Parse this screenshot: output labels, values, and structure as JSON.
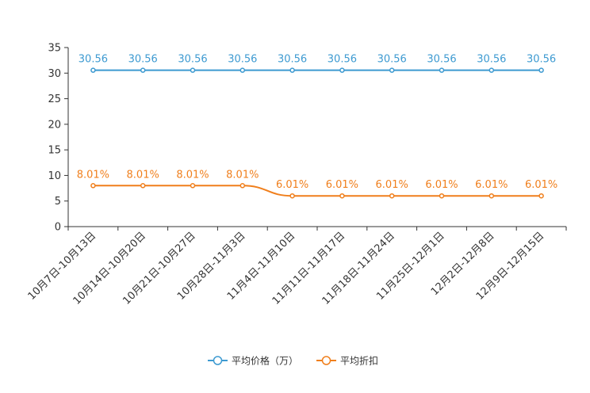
{
  "chart_data": {
    "type": "line",
    "categories": [
      "10月7日-10月13日",
      "10月14日-10月20日",
      "10月21日-10月27日",
      "10月28日-11月3日",
      "11月4日-11月10日",
      "11月11日-11月17日",
      "11月18日-11月24日",
      "11月25日-12月1日",
      "12月2日-12月8日",
      "12月9日-12月15日"
    ],
    "ylim": [
      0,
      35
    ],
    "yticks": [
      0,
      5,
      10,
      15,
      20,
      25,
      30,
      35
    ],
    "series": [
      {
        "name": "平均价格（万）",
        "color": "#3d9ad1",
        "values": [
          30.56,
          30.56,
          30.56,
          30.56,
          30.56,
          30.56,
          30.56,
          30.56,
          30.56,
          30.56
        ],
        "labels": [
          "30.56",
          "30.56",
          "30.56",
          "30.56",
          "30.56",
          "30.56",
          "30.56",
          "30.56",
          "30.56",
          "30.56"
        ]
      },
      {
        "name": "平均折扣",
        "color": "#f07f1c",
        "values": [
          8.01,
          8.01,
          8.01,
          8.01,
          6.01,
          6.01,
          6.01,
          6.01,
          6.01,
          6.01
        ],
        "labels": [
          "8.01%",
          "8.01%",
          "8.01%",
          "8.01%",
          "6.01%",
          "6.01%",
          "6.01%",
          "6.01%",
          "6.01%",
          "6.01%"
        ]
      }
    ],
    "legend_position": "bottom-center",
    "grid": false
  }
}
